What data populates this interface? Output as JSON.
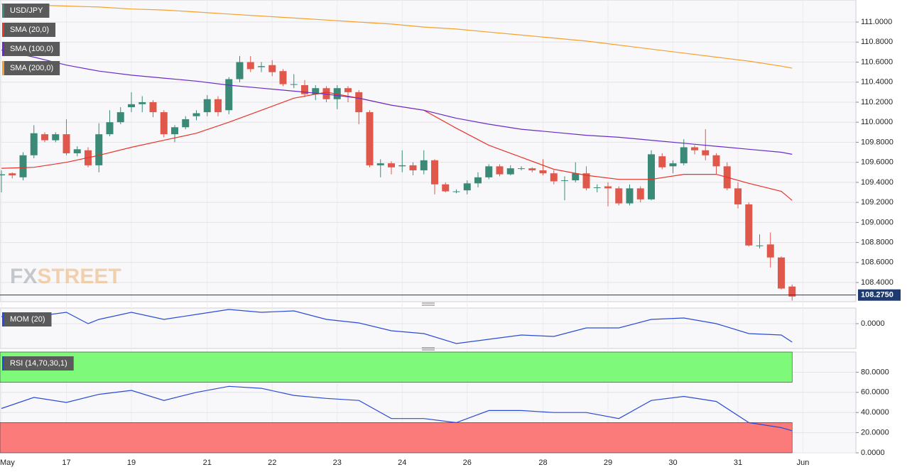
{
  "chart_data": [
    {
      "type": "candlestick",
      "name": "USD/JPY",
      "categories": [
        "May",
        null,
        null,
        null,
        null,
        null,
        "17",
        null,
        null,
        null,
        null,
        null,
        "19",
        null,
        null,
        null,
        null,
        null,
        null,
        "21",
        null,
        null,
        null,
        null,
        null,
        "22",
        null,
        null,
        null,
        null,
        null,
        "23",
        null,
        null,
        null,
        null,
        null,
        "24",
        null,
        null,
        null,
        null,
        null,
        "26",
        null,
        null,
        null,
        null,
        null,
        null,
        "28",
        null,
        null,
        null,
        null,
        null,
        "29",
        null,
        null,
        null,
        null,
        null,
        "30",
        null,
        null,
        null,
        null,
        null,
        "31",
        null,
        null,
        null,
        null,
        null,
        "Jun"
      ],
      "open": [
        109.47,
        109.49,
        109.45,
        109.67,
        109.88,
        109.82,
        109.88,
        109.69,
        109.72,
        109.57,
        109.88,
        110.0,
        110.15,
        110.18,
        110.2,
        110.1,
        109.88,
        109.95,
        110.06,
        110.1,
        110.23,
        110.12,
        110.43,
        110.6,
        110.55,
        110.57,
        110.51,
        110.38,
        110.37,
        110.28,
        110.34,
        110.23,
        110.34,
        110.3,
        110.1,
        109.57,
        109.59,
        109.56,
        109.57,
        109.52,
        109.62,
        109.38,
        109.31,
        109.32,
        109.39,
        109.45,
        109.56,
        109.48,
        109.54,
        109.54,
        109.52,
        109.49,
        109.42,
        109.42,
        109.49,
        109.35,
        109.36,
        109.34,
        109.19,
        109.34,
        109.23,
        109.66,
        109.56,
        109.59,
        109.75,
        109.72,
        109.67,
        109.56,
        109.34,
        109.18,
        108.77,
        108.78,
        108.65,
        108.36,
        null
      ],
      "high": [
        109.52,
        109.5,
        109.7,
        109.97,
        109.9,
        109.9,
        110.03,
        109.76,
        109.75,
        109.99,
        110.12,
        110.15,
        110.3,
        110.26,
        110.22,
        110.12,
        109.97,
        110.06,
        110.12,
        110.27,
        110.26,
        110.45,
        110.66,
        110.66,
        110.6,
        110.62,
        110.53,
        110.48,
        110.42,
        110.37,
        110.36,
        110.37,
        110.36,
        110.32,
        110.12,
        109.63,
        109.61,
        109.72,
        109.6,
        109.72,
        109.63,
        109.4,
        109.33,
        109.42,
        109.5,
        109.58,
        109.58,
        109.57,
        109.56,
        109.55,
        109.63,
        109.52,
        109.46,
        109.6,
        109.56,
        109.38,
        109.4,
        109.36,
        109.38,
        109.36,
        109.72,
        109.69,
        109.62,
        109.83,
        109.77,
        109.93,
        109.69,
        109.6,
        109.4,
        109.2,
        108.88,
        108.9,
        108.66,
        108.38,
        null
      ],
      "low": [
        109.3,
        109.44,
        109.42,
        109.64,
        109.8,
        109.8,
        109.67,
        109.66,
        109.55,
        109.5,
        109.86,
        109.98,
        110.1,
        110.1,
        110.05,
        109.85,
        109.8,
        109.93,
        110.02,
        110.06,
        110.06,
        110.08,
        110.4,
        110.5,
        110.5,
        110.46,
        110.36,
        110.34,
        110.25,
        110.22,
        110.2,
        110.13,
        110.2,
        109.98,
        109.55,
        109.45,
        109.48,
        109.5,
        109.47,
        109.48,
        109.28,
        109.3,
        109.29,
        109.28,
        109.35,
        109.43,
        109.46,
        109.47,
        109.52,
        109.5,
        109.47,
        109.38,
        109.22,
        109.4,
        109.32,
        109.3,
        109.16,
        109.17,
        109.17,
        109.2,
        109.22,
        109.53,
        109.49,
        109.57,
        109.68,
        109.62,
        109.48,
        109.32,
        109.14,
        108.76,
        108.74,
        108.55,
        108.33,
        108.22,
        null
      ],
      "close": [
        109.48,
        109.47,
        109.67,
        109.89,
        109.82,
        109.88,
        109.69,
        109.73,
        109.57,
        109.88,
        110.0,
        110.1,
        110.18,
        110.2,
        110.1,
        109.88,
        109.95,
        110.03,
        110.09,
        110.23,
        110.1,
        110.43,
        110.6,
        110.53,
        110.56,
        110.5,
        110.38,
        110.38,
        110.28,
        110.34,
        110.23,
        110.34,
        110.3,
        110.1,
        109.57,
        109.59,
        109.55,
        109.57,
        109.52,
        109.62,
        109.38,
        109.31,
        109.31,
        109.39,
        109.45,
        109.56,
        109.48,
        109.54,
        109.54,
        109.52,
        109.49,
        109.41,
        109.42,
        109.49,
        109.34,
        109.35,
        109.34,
        109.19,
        109.34,
        109.23,
        109.68,
        109.55,
        109.59,
        109.75,
        109.72,
        109.67,
        109.56,
        109.34,
        109.18,
        108.77,
        108.77,
        108.65,
        108.34,
        108.26,
        null
      ],
      "up_color": "#3b8a77",
      "down_color": "#e0574b",
      "series": [
        {
          "name": "SMA (20,0)",
          "color": "#e8332a",
          "x": [
            0,
            3,
            6,
            9,
            12,
            15,
            18,
            21,
            24,
            27,
            30,
            33,
            36,
            39,
            42,
            45,
            48,
            51,
            54,
            57,
            60,
            63,
            66,
            69,
            72,
            73
          ],
          "values": [
            109.54,
            109.55,
            109.6,
            109.67,
            109.75,
            109.82,
            109.89,
            110.0,
            110.12,
            110.24,
            110.3,
            110.24,
            110.17,
            110.12,
            109.94,
            109.77,
            109.65,
            109.53,
            109.47,
            109.43,
            109.43,
            109.48,
            109.48,
            109.39,
            109.31,
            109.22
          ]
        },
        {
          "name": "SMA (100,0)",
          "color": "#6a2bc9",
          "x": [
            0,
            3,
            6,
            9,
            12,
            15,
            18,
            21,
            24,
            27,
            30,
            33,
            36,
            39,
            42,
            45,
            48,
            51,
            54,
            57,
            60,
            63,
            66,
            69,
            72,
            73
          ],
          "values": [
            110.72,
            110.65,
            110.57,
            110.51,
            110.47,
            110.44,
            110.41,
            110.37,
            110.34,
            110.31,
            110.28,
            110.24,
            110.17,
            110.12,
            110.04,
            109.98,
            109.93,
            109.9,
            109.87,
            109.85,
            109.82,
            109.79,
            109.76,
            109.73,
            109.7,
            109.68
          ]
        },
        {
          "name": "SMA (200,0)",
          "color": "#f5a02a",
          "x": [
            0,
            3,
            6,
            9,
            12,
            15,
            18,
            21,
            24,
            27,
            30,
            33,
            36,
            39,
            42,
            45,
            48,
            51,
            54,
            57,
            60,
            63,
            66,
            69,
            72,
            73
          ],
          "values": [
            111.18,
            111.17,
            111.16,
            111.15,
            111.13,
            111.12,
            111.1,
            111.08,
            111.06,
            111.04,
            111.02,
            111.0,
            110.98,
            110.95,
            110.93,
            110.9,
            110.87,
            110.84,
            110.81,
            110.77,
            110.73,
            110.69,
            110.65,
            110.61,
            110.56,
            110.54
          ]
        }
      ],
      "ylim": [
        108.209,
        111.22
      ],
      "yticks": [
        {
          "value": 108.4,
          "label": "108.4000"
        },
        {
          "value": 108.6,
          "label": "108.6000"
        },
        {
          "value": 108.8,
          "label": "108.8000"
        },
        {
          "value": 109.0,
          "label": "109.0000"
        },
        {
          "value": 109.2,
          "label": "109.2000"
        },
        {
          "value": 109.4,
          "label": "109.4000"
        },
        {
          "value": 109.6,
          "label": "109.6000"
        },
        {
          "value": 109.8,
          "label": "109.8000"
        },
        {
          "value": 110.0,
          "label": "110.0000"
        },
        {
          "value": 110.2,
          "label": "110.2000"
        },
        {
          "value": 110.4,
          "label": "110.4000"
        },
        {
          "value": 110.6,
          "label": "110.6000"
        },
        {
          "value": 110.8,
          "label": "110.8000"
        },
        {
          "value": 111.0,
          "label": "111.0000"
        }
      ],
      "grid": true,
      "last_price": {
        "value": 108.275,
        "label": "108.2750"
      },
      "last_color": "#1f3a6e",
      "watermark": [
        "FX",
        "STREET"
      ]
    },
    {
      "type": "line",
      "series": [
        {
          "name": "MOM (20)",
          "color": "#2a4bd7",
          "x": [
            0,
            3,
            6,
            8,
            9,
            12,
            15,
            18,
            21,
            24,
            27,
            30,
            33,
            36,
            39,
            42,
            45,
            48,
            51,
            54,
            57,
            60,
            63,
            66,
            69,
            72,
            73
          ],
          "values": [
            0.4,
            0.4,
            0.64,
            0.0,
            0.24,
            0.64,
            0.24,
            0.52,
            0.8,
            0.64,
            0.72,
            0.24,
            0.04,
            -0.4,
            -0.56,
            -1.12,
            -0.88,
            -0.64,
            -0.72,
            -0.24,
            -0.24,
            0.24,
            0.32,
            0.0,
            -0.56,
            -0.64,
            -1.04
          ]
        }
      ],
      "ylim": [
        -1.4,
        0.88
      ],
      "yticks": [
        {
          "value": 0,
          "label": "0.0000"
        }
      ],
      "grid": true
    },
    {
      "type": "line",
      "series": [
        {
          "name": "RSI (14,70,30,1)",
          "color": "#2a4bd7",
          "x": [
            0,
            3,
            6,
            9,
            12,
            15,
            18,
            21,
            24,
            27,
            30,
            33,
            36,
            39,
            42,
            45,
            48,
            51,
            54,
            57,
            60,
            63,
            66,
            69,
            72,
            73
          ],
          "values": [
            44,
            55,
            50,
            58,
            62,
            52,
            60,
            66,
            64,
            57,
            54,
            52,
            34,
            34,
            30,
            42,
            42,
            40,
            40,
            34,
            52,
            56,
            51,
            30,
            25,
            22
          ]
        }
      ],
      "ylim": [
        0,
        100
      ],
      "yticks": [
        {
          "value": 0,
          "label": "0.0000"
        },
        {
          "value": 20,
          "label": "20.0000"
        },
        {
          "value": 40,
          "label": "40.0000"
        },
        {
          "value": 60,
          "label": "60.0000"
        },
        {
          "value": 80,
          "label": "80.0000"
        }
      ],
      "grid": true,
      "upper": 70,
      "lower": 30,
      "upper_color": "#7ef97a",
      "lower_color": "#fb7b7b"
    }
  ]
}
